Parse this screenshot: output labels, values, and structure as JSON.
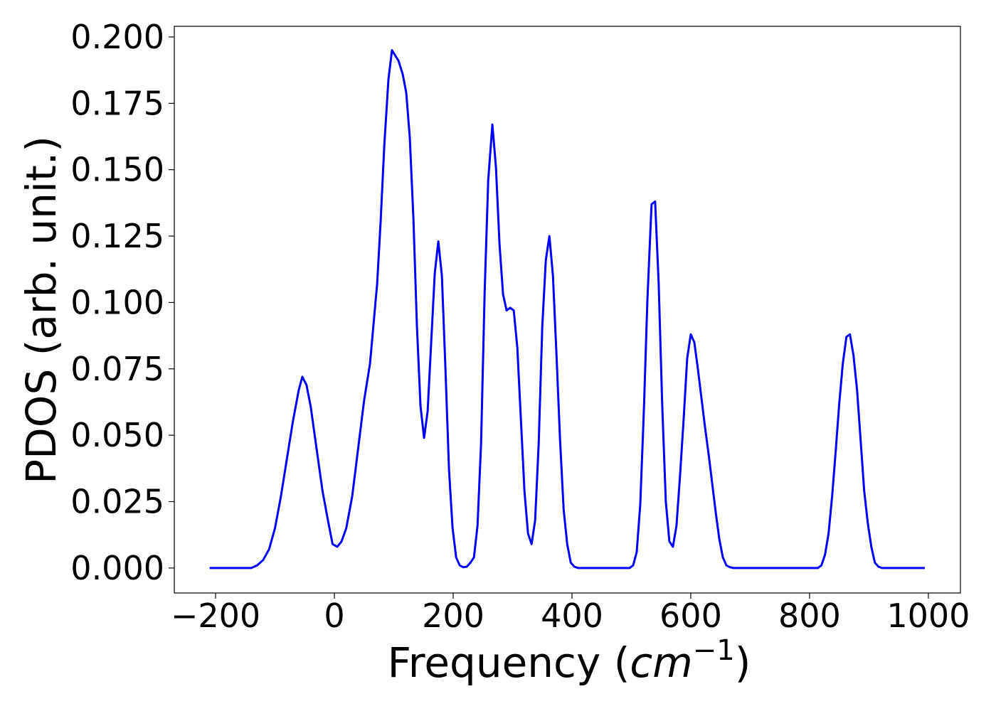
{
  "chart_data": {
    "type": "line",
    "x_label_parts": [
      "Frequency (",
      "cm",
      "−1",
      ")"
    ],
    "y_label": "PDOS (arb. unit.)",
    "xlim": [
      -269.5,
      1054
    ],
    "ylim": [
      -0.0094,
      0.204
    ],
    "xticks": [
      {
        "value": -200,
        "label": "−200"
      },
      0,
      200,
      400,
      600,
      800,
      1000
    ],
    "yticks": [
      {
        "value": 0,
        "label": "0.000"
      },
      {
        "value": 0.025,
        "label": "0.025"
      },
      {
        "value": 0.05,
        "label": "0.050"
      },
      {
        "value": 0.075,
        "label": "0.075"
      },
      {
        "value": 0.1,
        "label": "0.100"
      },
      {
        "value": 0.125,
        "label": "0.125"
      },
      {
        "value": 0.15,
        "label": "0.150"
      },
      {
        "value": 0.175,
        "label": "0.175"
      },
      {
        "value": 0.2,
        "label": "0.200"
      }
    ],
    "grid": false,
    "series": [
      {
        "color": "#0000ff",
        "x": [
          -210,
          -140,
          -130,
          -120,
          -110,
          -100,
          -90,
          -80,
          -70,
          -60,
          -54,
          -47,
          -40,
          -30,
          -20,
          -10,
          -3,
          5,
          12,
          20,
          30,
          40,
          50,
          60,
          66,
          72,
          78,
          84,
          91,
          97,
          108,
          115,
          121,
          127,
          133,
          139,
          145,
          151,
          157,
          163,
          169,
          175,
          181,
          187,
          193,
          199,
          205,
          211,
          217,
          223,
          229,
          235,
          241,
          247,
          253,
          259,
          266,
          272,
          278,
          284,
          290,
          296,
          302,
          308,
          314,
          320,
          326,
          332,
          338,
          344,
          350,
          356,
          362,
          368,
          374,
          380,
          386,
          392,
          398,
          404,
          410,
          497,
          503,
          509,
          515,
          521,
          527,
          534,
          540,
          546,
          552,
          558,
          564,
          570,
          576,
          582,
          588,
          594,
          600,
          606,
          612,
          618,
          624,
          630,
          636,
          642,
          648,
          654,
          660,
          666,
          672,
          814,
          820,
          826,
          832,
          838,
          844,
          850,
          856,
          862,
          868,
          874,
          880,
          886,
          892,
          898,
          904,
          910,
          916,
          922,
          994
        ],
        "values": [
          0,
          0,
          0.001,
          0.003,
          0.007,
          0.015,
          0.027,
          0.041,
          0.055,
          0.067,
          0.072,
          0.069,
          0.061,
          0.045,
          0.029,
          0.017,
          0.009,
          0.008,
          0.01,
          0.015,
          0.027,
          0.045,
          0.063,
          0.077,
          0.092,
          0.107,
          0.131,
          0.159,
          0.184,
          0.195,
          0.191,
          0.186,
          0.179,
          0.162,
          0.132,
          0.091,
          0.061,
          0.049,
          0.059,
          0.085,
          0.111,
          0.123,
          0.11,
          0.075,
          0.037,
          0.015,
          0.004,
          0.001,
          0.0003,
          0.0005,
          0.002,
          0.004,
          0.016,
          0.047,
          0.104,
          0.146,
          0.167,
          0.151,
          0.122,
          0.103,
          0.097,
          0.098,
          0.097,
          0.083,
          0.056,
          0.029,
          0.013,
          0.009,
          0.018,
          0.047,
          0.091,
          0.116,
          0.125,
          0.11,
          0.08,
          0.048,
          0.022,
          0.009,
          0.002,
          0.0005,
          0,
          0,
          0.001,
          0.006,
          0.024,
          0.059,
          0.101,
          0.137,
          0.138,
          0.107,
          0.061,
          0.025,
          0.01,
          0.008,
          0.016,
          0.035,
          0.056,
          0.079,
          0.088,
          0.085,
          0.075,
          0.064,
          0.053,
          0.043,
          0.032,
          0.021,
          0.011,
          0.004,
          0.001,
          0.0003,
          0,
          0,
          0.001,
          0.005,
          0.013,
          0.027,
          0.044,
          0.062,
          0.077,
          0.087,
          0.088,
          0.08,
          0.067,
          0.048,
          0.029,
          0.017,
          0.008,
          0.002,
          0.0005,
          0,
          0
        ]
      }
    ]
  }
}
